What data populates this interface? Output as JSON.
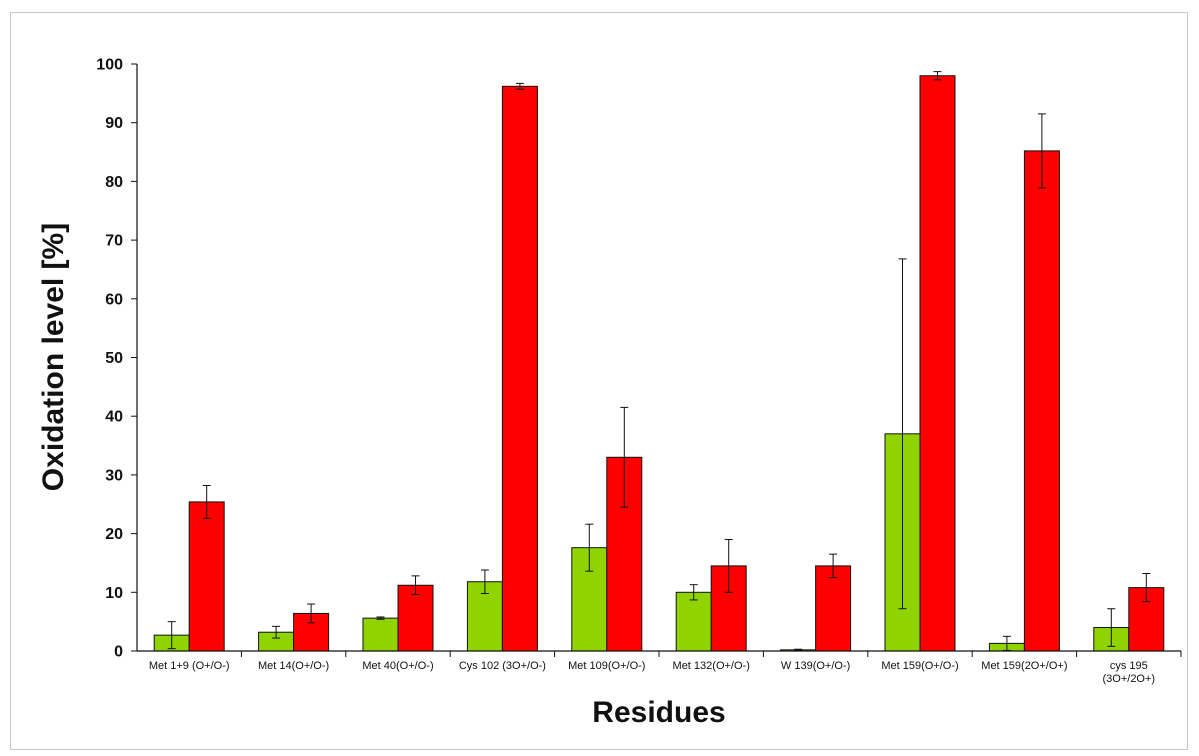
{
  "chart_data": {
    "type": "bar",
    "title": "",
    "xlabel": "Residues",
    "ylabel": "Oxidation level [%]",
    "ylim": [
      0,
      100
    ],
    "yticks": [
      0,
      10,
      20,
      30,
      40,
      50,
      60,
      70,
      80,
      90,
      100
    ],
    "grid": false,
    "legend": "none",
    "categories": [
      [
        "Met 1+9 (O+/O-)"
      ],
      [
        "Met 14(O+/O-)"
      ],
      [
        "Met 40(O+/O-)"
      ],
      [
        "Cys 102 (3O+/O-)"
      ],
      [
        "Met 109(O+/O-)"
      ],
      [
        "Met 132(O+/O-)"
      ],
      [
        "W 139(O+/O-)"
      ],
      [
        "Met 159(O+/O-)"
      ],
      [
        "Met 159(2O+/O+)"
      ],
      [
        "cys 195",
        "(3O+/2O+)"
      ]
    ],
    "series": [
      {
        "color": "#8fd400",
        "values": [
          2.7,
          3.2,
          5.6,
          11.8,
          17.6,
          10.0,
          0.2,
          37.0,
          1.3,
          4.0
        ],
        "errors": [
          2.3,
          1.0,
          0.2,
          2.0,
          4.0,
          1.3,
          0.1,
          29.8,
          1.2,
          3.2
        ]
      },
      {
        "color": "#ff0000",
        "values": [
          25.4,
          6.4,
          11.2,
          96.2,
          33.0,
          14.5,
          14.5,
          98.0,
          85.2,
          10.8
        ],
        "errors": [
          2.8,
          1.6,
          1.6,
          0.5,
          8.5,
          4.5,
          2.0,
          0.7,
          6.3,
          2.4
        ]
      }
    ]
  }
}
